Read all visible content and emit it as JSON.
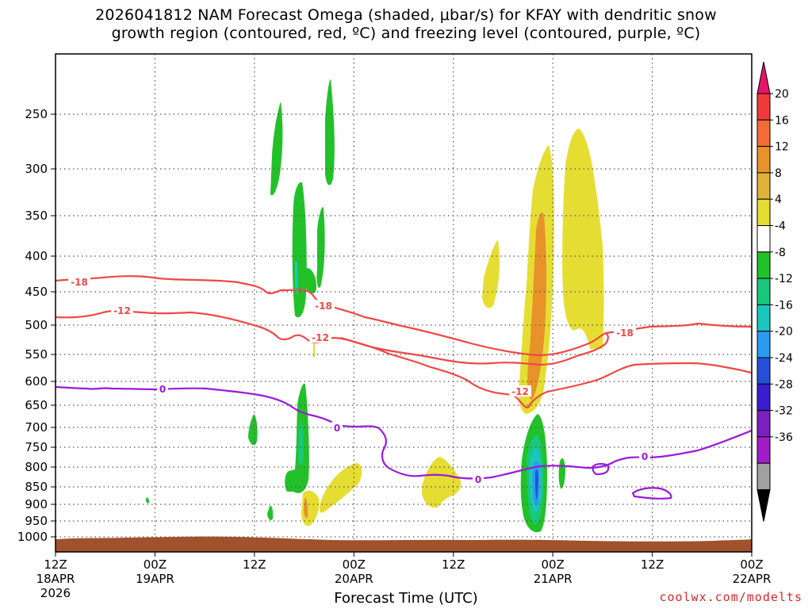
{
  "title_line1": "2026041812 NAM Forecast Omega (shaded, μbar/s) for KFAY with dendritic snow",
  "title_line2": "growth region (contoured, red, ºC) and freezing level (contoured, purple, ºC)",
  "chart_data": {
    "type": "heatmap",
    "xlabel": "Forecast Time (UTC)",
    "x_ticks": [
      {
        "label": "12Z",
        "sub": "18APR",
        "sub2": "2026"
      },
      {
        "label": "00Z",
        "sub": "19APR"
      },
      {
        "label": "12Z",
        "sub": ""
      },
      {
        "label": "00Z",
        "sub": "20APR"
      },
      {
        "label": "12Z",
        "sub": ""
      },
      {
        "label": "00Z",
        "sub": "21APR"
      },
      {
        "label": "12Z",
        "sub": ""
      },
      {
        "label": "00Z",
        "sub": "22APR"
      }
    ],
    "y_ticks": [
      "250",
      "300",
      "350",
      "400",
      "450",
      "500",
      "550",
      "600",
      "650",
      "700",
      "750",
      "800",
      "850",
      "900",
      "950",
      "1000"
    ],
    "y_values": [
      250,
      300,
      350,
      400,
      450,
      500,
      550,
      600,
      650,
      700,
      750,
      800,
      850,
      900,
      950,
      1000
    ],
    "colorbar": {
      "labels": [
        "20",
        "16",
        "12",
        "8",
        "4",
        "-4",
        "-8",
        "-12",
        "-16",
        "-20",
        "-24",
        "-28",
        "-32",
        "-36"
      ],
      "colors": [
        "#e8136b",
        "#f03a3a",
        "#f56b38",
        "#e8922a",
        "#e0b23a",
        "#e6dd33",
        "#ffffff",
        "#22c12a",
        "#19c77d",
        "#1cc6c0",
        "#2a9bee",
        "#2551d8",
        "#3a1dcf",
        "#7d1fbf",
        "#a21cc8",
        "#a0a0a0",
        "#000000"
      ]
    },
    "contour_labels": {
      "dgz_upper": "-18",
      "dgz_lower": "-12",
      "freezing": "0"
    },
    "credit": "coolwx.com/modelts",
    "colors": {
      "dgz": "#f04848",
      "freezing": "#9b1ad8",
      "terrain": "#a0522d"
    }
  }
}
